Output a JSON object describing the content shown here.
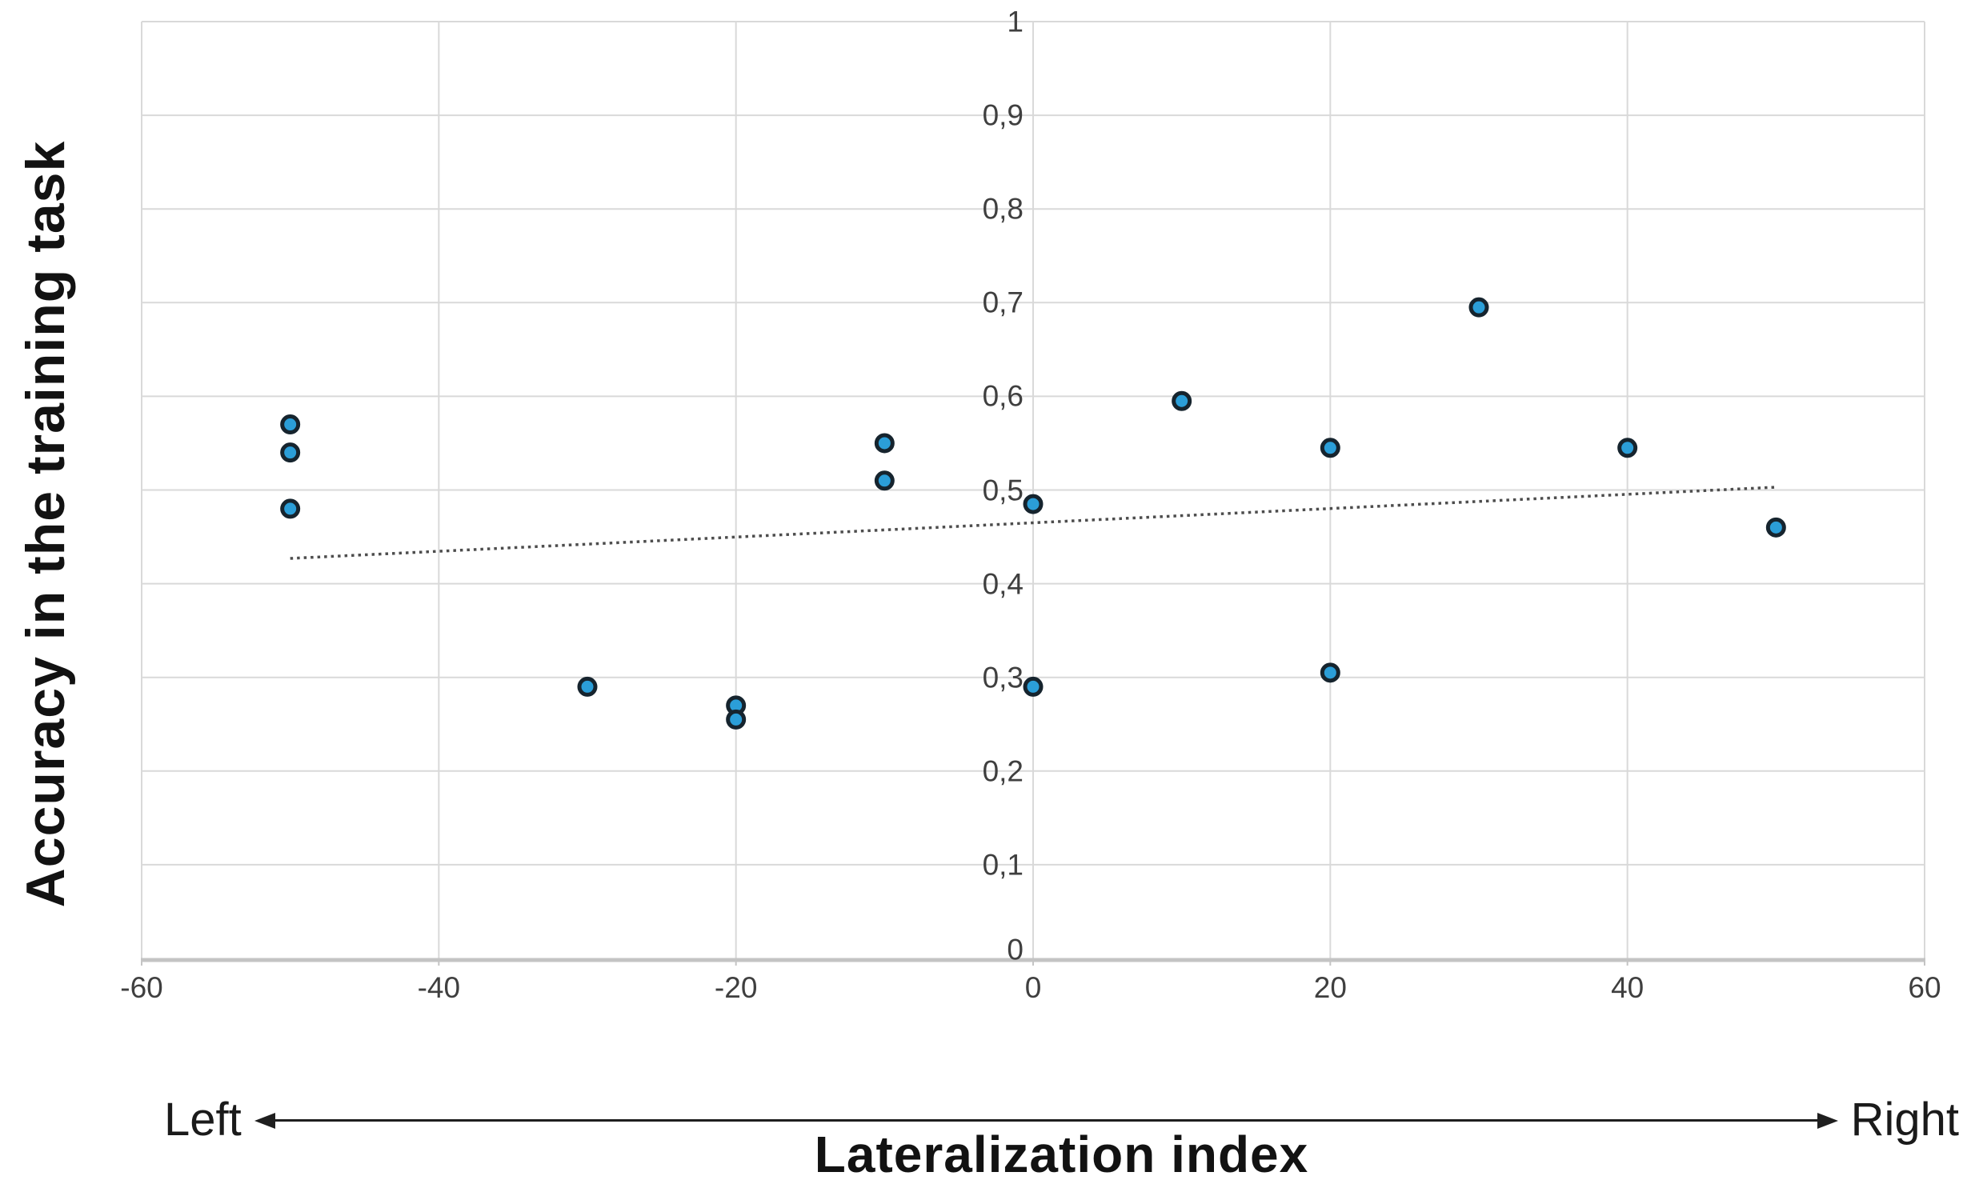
{
  "chart_data": {
    "type": "scatter",
    "xlabel": "Lateralization index",
    "ylabel": "Accuracy in the training task",
    "xlim": [
      -60,
      60
    ],
    "ylim": [
      0,
      1
    ],
    "grid": true,
    "legend": "none",
    "x_ticks": [
      {
        "v": -60,
        "label": "-60"
      },
      {
        "v": -40,
        "label": "-40"
      },
      {
        "v": -20,
        "label": "-20"
      },
      {
        "v": 0,
        "label": "0"
      },
      {
        "v": 20,
        "label": "20"
      },
      {
        "v": 40,
        "label": "40"
      },
      {
        "v": 60,
        "label": "60"
      }
    ],
    "y_ticks": [
      {
        "v": 0,
        "label": "0"
      },
      {
        "v": 0.1,
        "label": "0,1"
      },
      {
        "v": 0.2,
        "label": "0,2"
      },
      {
        "v": 0.3,
        "label": "0,3"
      },
      {
        "v": 0.4,
        "label": "0,4"
      },
      {
        "v": 0.5,
        "label": "0,5"
      },
      {
        "v": 0.6,
        "label": "0,6"
      },
      {
        "v": 0.7,
        "label": "0,7"
      },
      {
        "v": 0.8,
        "label": "0,8"
      },
      {
        "v": 0.9,
        "label": "0,9"
      },
      {
        "v": 1,
        "label": "1"
      }
    ],
    "points": [
      {
        "x": -50,
        "y": 0.57
      },
      {
        "x": -50,
        "y": 0.54
      },
      {
        "x": -50,
        "y": 0.48
      },
      {
        "x": -30,
        "y": 0.29
      },
      {
        "x": -20,
        "y": 0.27
      },
      {
        "x": -20,
        "y": 0.255
      },
      {
        "x": -10,
        "y": 0.55
      },
      {
        "x": -10,
        "y": 0.51
      },
      {
        "x": 0,
        "y": 0.485
      },
      {
        "x": 0,
        "y": 0.29
      },
      {
        "x": 10,
        "y": 0.595
      },
      {
        "x": 20,
        "y": 0.545
      },
      {
        "x": 20,
        "y": 0.305
      },
      {
        "x": 30,
        "y": 0.695
      },
      {
        "x": 40,
        "y": 0.545
      },
      {
        "x": 50,
        "y": 0.46
      }
    ],
    "trendline": {
      "style": "dotted",
      "x1": -50,
      "y1": 0.427,
      "x2": 50,
      "y2": 0.503
    },
    "annotations": {
      "left": "Left",
      "right": "Right"
    },
    "colors": {
      "marker_fill": "#2b9ed8",
      "marker_stroke": "#16242e",
      "gridline": "#d9d9d9",
      "axis_line": "#c4c4c4",
      "tick_text": "#3f3f3f",
      "trendline": "#4d4d4d"
    }
  }
}
